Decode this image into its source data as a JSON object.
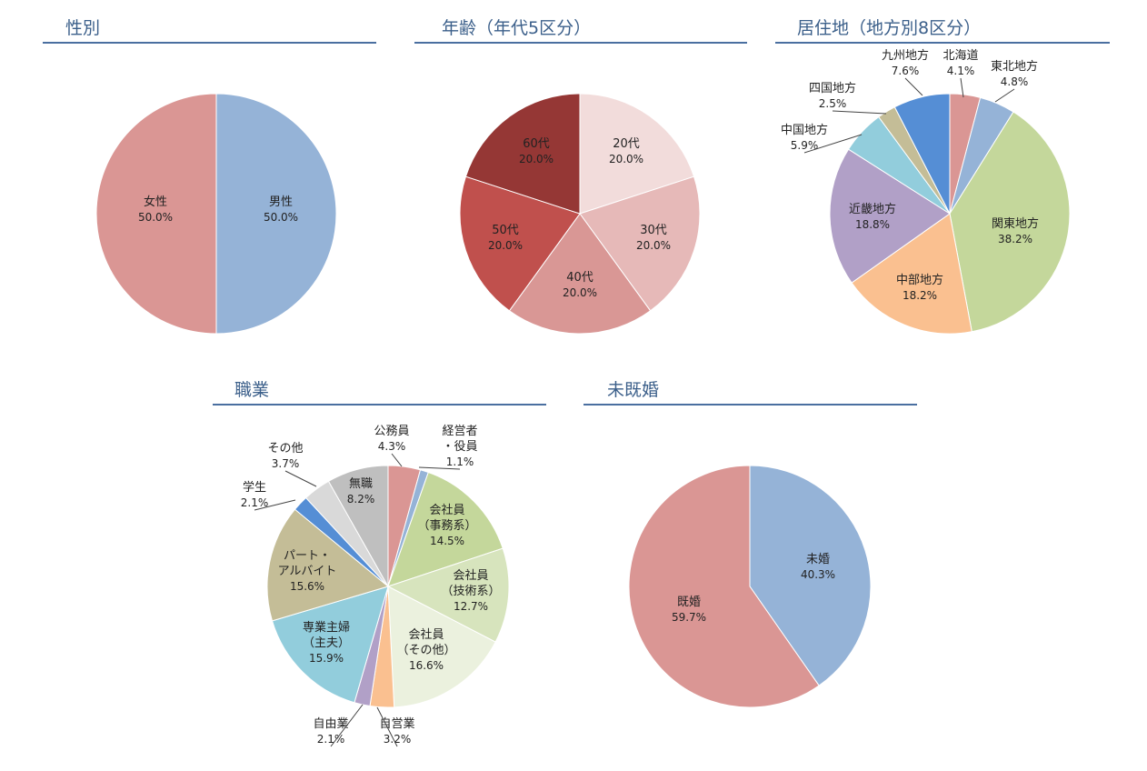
{
  "chart_data": [
    {
      "type": "pie",
      "title": "性別",
      "slices": [
        {
          "name": "男性",
          "pct_label": "50.0%",
          "value": 50.0,
          "color": "#95b3d7"
        },
        {
          "name": "女性",
          "pct_label": "50.0%",
          "value": 50.0,
          "color": "#da9694"
        }
      ]
    },
    {
      "type": "pie",
      "title": "年齢（年代5区分）",
      "slices": [
        {
          "name": "20代",
          "pct_label": "20.0%",
          "value": 20.0,
          "color": "#f2dcdb"
        },
        {
          "name": "30代",
          "pct_label": "20.0%",
          "value": 20.0,
          "color": "#e6b9b8"
        },
        {
          "name": "40代",
          "pct_label": "20.0%",
          "value": 20.0,
          "color": "#d99795"
        },
        {
          "name": "50代",
          "pct_label": "20.0%",
          "value": 20.0,
          "color": "#c0504d"
        },
        {
          "name": "60代",
          "pct_label": "20.0%",
          "value": 20.0,
          "color": "#953735"
        }
      ]
    },
    {
      "type": "pie",
      "title": "居住地（地方別8区分）",
      "slices": [
        {
          "name": "北海道",
          "pct_label": "4.1%",
          "value": 4.1,
          "color": "#da9694"
        },
        {
          "name": "東北地方",
          "pct_label": "4.8%",
          "value": 4.8,
          "color": "#95b3d7"
        },
        {
          "name": "関東地方",
          "pct_label": "38.2%",
          "value": 38.2,
          "color": "#c4d79b"
        },
        {
          "name": "中部地方",
          "pct_label": "18.2%",
          "value": 18.2,
          "color": "#fac090"
        },
        {
          "name": "近畿地方",
          "pct_label": "18.8%",
          "value": 18.8,
          "color": "#b1a0c7"
        },
        {
          "name": "中国地方",
          "pct_label": "5.9%",
          "value": 5.9,
          "color": "#92cddc"
        },
        {
          "name": "四国地方",
          "pct_label": "2.5%",
          "value": 2.5,
          "color": "#c4bd97"
        },
        {
          "name": "九州地方",
          "pct_label": "7.6%",
          "value": 7.6,
          "color": "#558ed5"
        }
      ]
    },
    {
      "type": "pie",
      "title": "職業",
      "slices": [
        {
          "name": "公務員",
          "pct_label": "4.3%",
          "value": 4.3,
          "color": "#da9694"
        },
        {
          "name": "経営者・役員",
          "pct_label": "1.1%",
          "value": 1.1,
          "color": "#95b3d7"
        },
        {
          "name": "会社員（事務系）",
          "pct_label": "14.5%",
          "value": 14.5,
          "color": "#c4d79b"
        },
        {
          "name": "会社員（技術系）",
          "pct_label": "12.7%",
          "value": 12.7,
          "color": "#d7e4bd"
        },
        {
          "name": "会社員（その他）",
          "pct_label": "16.6%",
          "value": 16.6,
          "color": "#ebf1de"
        },
        {
          "name": "自営業",
          "pct_label": "3.2%",
          "value": 3.2,
          "color": "#fac090"
        },
        {
          "name": "自由業",
          "pct_label": "2.1%",
          "value": 2.1,
          "color": "#b1a0c7"
        },
        {
          "name": "専業主婦（主夫）",
          "pct_label": "15.9%",
          "value": 15.9,
          "color": "#92cddc"
        },
        {
          "name": "パート・アルバイト",
          "pct_label": "15.6%",
          "value": 15.6,
          "color": "#c4bd97"
        },
        {
          "name": "学生",
          "pct_label": "2.1%",
          "value": 2.1,
          "color": "#558ed5"
        },
        {
          "name": "その他",
          "pct_label": "3.7%",
          "value": 3.7,
          "color": "#d9d9d9"
        },
        {
          "name": "無職",
          "pct_label": "8.2%",
          "value": 8.2,
          "color": "#bfbfbf"
        }
      ]
    },
    {
      "type": "pie",
      "title": "未既婚",
      "slices": [
        {
          "name": "未婚",
          "pct_label": "40.3%",
          "value": 40.3,
          "color": "#95b3d7"
        },
        {
          "name": "既婚",
          "pct_label": "59.7%",
          "value": 59.7,
          "color": "#da9694"
        }
      ]
    }
  ]
}
